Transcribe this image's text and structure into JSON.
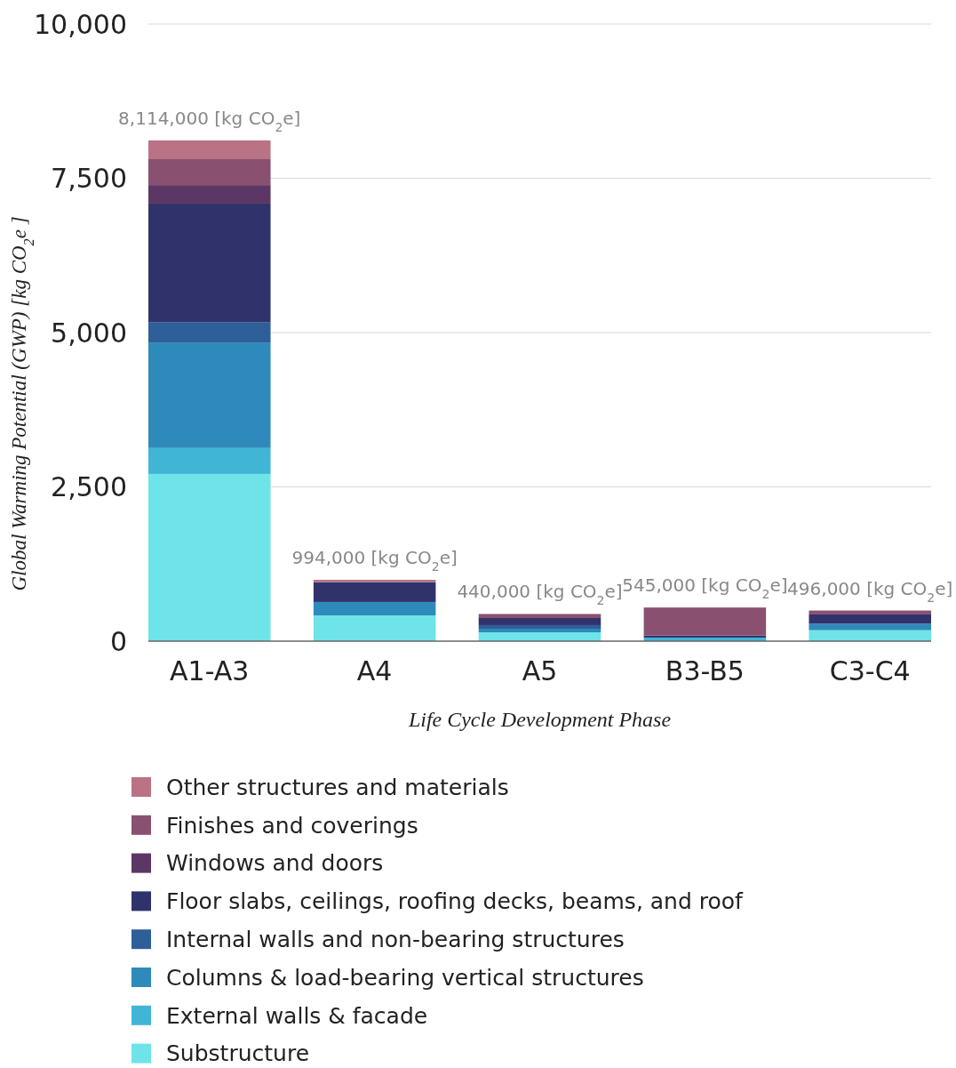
{
  "chart_data": {
    "type": "bar",
    "stacked": true,
    "xlabel": "Life Cycle Development Phase",
    "ylabel": "Global Warming Potential (GWP) [kg CO$_{2}$e ]",
    "categories": [
      "A1-A3",
      "A4",
      "A5",
      "B3-B5",
      "C3-C4"
    ],
    "series": [
      {
        "name": "Substructure",
        "color": "#6ee4e8",
        "values": [
          2710,
          418,
          144,
          0,
          178
        ]
      },
      {
        "name": "External walls & facade",
        "color": "#40b5d5",
        "values": [
          420,
          0,
          0,
          58,
          0
        ]
      },
      {
        "name": "Columns & load-bearing vertical structures",
        "color": "#2e8aba",
        "values": [
          1710,
          217,
          58,
          0,
          106
        ]
      },
      {
        "name": "Internal walls and non-bearing structures",
        "color": "#2e5f98",
        "values": [
          330,
          0,
          58,
          0,
          0
        ]
      },
      {
        "name": "Floor slabs, ceilings, roofing decks, beams, and roof",
        "color": "#30336b",
        "values": [
          1920,
          322,
          115,
          33,
          149
        ]
      },
      {
        "name": "Windows and doors",
        "color": "#5c3665",
        "values": [
          300,
          0,
          0,
          0,
          0
        ]
      },
      {
        "name": "Finishes and coverings",
        "color": "#8a5070",
        "values": [
          420,
          0,
          65,
          454,
          63
        ]
      },
      {
        "name": "Other structures and materials",
        "color": "#b97385",
        "values": [
          304,
          37,
          0,
          0,
          0
        ]
      }
    ],
    "totals": [
      "8,114,000 [kg CO$_{2}$e]",
      "994,000 [kg CO$_{2}$e]",
      "440,000 [kg CO$_{2}$e]",
      "545,000 [kg CO$_{2}$e]",
      "496,000 [kg CO$_{2}$e]"
    ],
    "ylim": [
      0,
      10000
    ],
    "yticks": [
      0,
      {
        "value": 2500,
        "label": "2,500"
      },
      {
        "value": 5000,
        "label": "5,000"
      },
      {
        "value": 7500,
        "label": "7,500"
      },
      {
        "value": 10000,
        "label": "10,000"
      }
    ],
    "grid": "y",
    "legend": "bottom"
  }
}
